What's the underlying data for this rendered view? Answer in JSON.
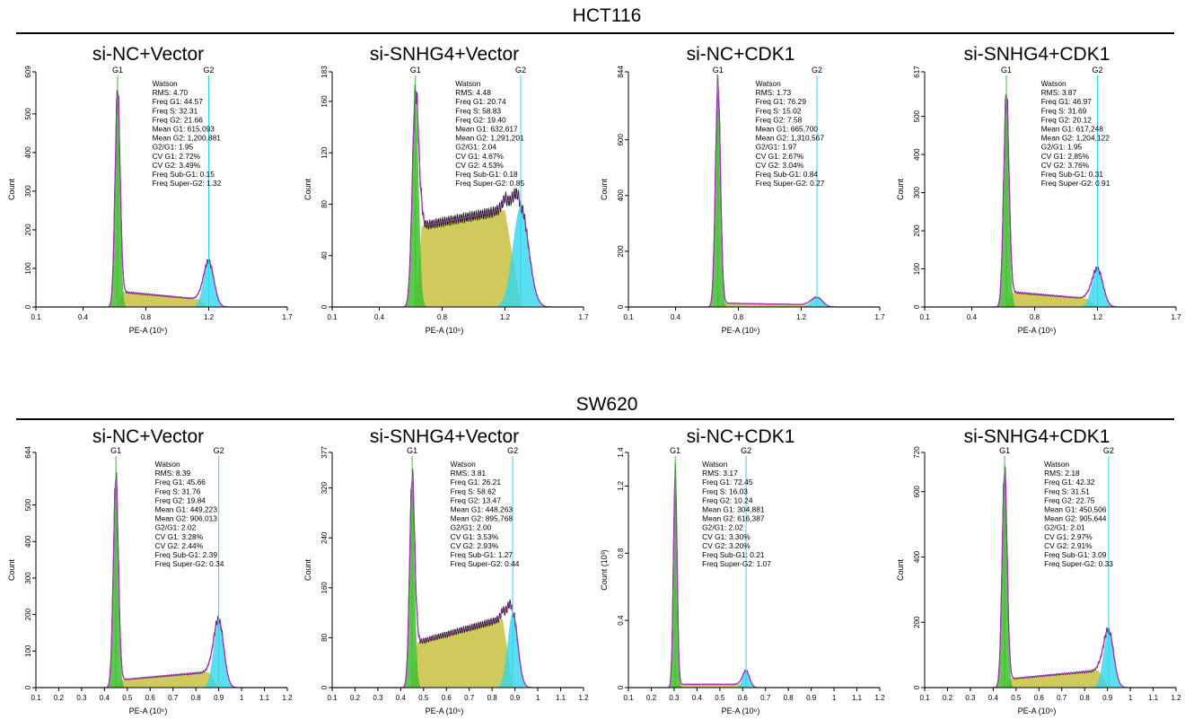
{
  "rows": [
    {
      "title": "HCT116"
    },
    {
      "title": "SW620"
    }
  ],
  "colors": {
    "g1_fill": "#3fbf2f",
    "s_fill": "#c8c040",
    "g2_fill": "#33d6ee",
    "fit_line": "#b02cc8",
    "data_line": "#222222",
    "peak_marker": "#28d8f0"
  },
  "chart_data": [
    {
      "type": "area",
      "row": "HCT116",
      "title": "si-NC+Vector",
      "xlabel": "PE-A (10⁶)",
      "ylabel": "Count",
      "xlim": [
        0.1,
        1.7
      ],
      "ylim": [
        0,
        609
      ],
      "xticks": [
        0.1,
        0.4,
        0.8,
        1.2,
        1.7
      ],
      "yticks": [
        0,
        100,
        200,
        300,
        400,
        500,
        609
      ],
      "g1_peak": {
        "label": "G1",
        "x": 0.62,
        "height": 560,
        "sigma": 0.016
      },
      "g2_peak": {
        "label": "G2",
        "x": 1.2,
        "height": 118,
        "sigma": 0.033
      },
      "s_level": [
        40,
        18
      ],
      "stats": [
        "Watson",
        "RMS: 4.70",
        "Freq G1: 44.57",
        "Freq S: 32.31",
        "Freq G2: 21.66",
        "Mean G1: 615,093",
        "Mean G2: 1,200,881",
        "G2/G1: 1.95",
        "CV G1: 2.72%",
        "CV G2: 3.49%",
        "Freq Sub-G1: 0.15",
        "Freq Super-G2: 1.32"
      ]
    },
    {
      "type": "area",
      "row": "HCT116",
      "title": "si-SNHG4+Vector",
      "xlabel": "PE-A (10⁶)",
      "ylabel": "Count",
      "xlim": [
        0.1,
        1.7
      ],
      "ylim": [
        0,
        183
      ],
      "xticks": [
        0.1,
        0.4,
        0.8,
        1.2,
        1.7
      ],
      "yticks": [
        0,
        40,
        80,
        120,
        160,
        183
      ],
      "g1_peak": {
        "label": "G1",
        "x": 0.63,
        "height": 165,
        "sigma": 0.02
      },
      "g2_peak": {
        "label": "G2",
        "x": 1.3,
        "height": 78,
        "sigma": 0.05
      },
      "s_level": [
        62,
        78
      ],
      "stats": [
        "Watson",
        "RMS: 4.48",
        "Freq G1: 20.74",
        "Freq S: 58.83",
        "Freq G2: 19.40",
        "Mean G1: 632,617",
        "Mean G2: 1,291,201",
        "G2/G1: 2.04",
        "CV G1: 4.67%",
        "CV G2: 4.53%",
        "Freq Sub-G1: 0.18",
        "Freq Super-G2: 0.85"
      ]
    },
    {
      "type": "area",
      "row": "HCT116",
      "title": "si-NC+CDK1",
      "xlabel": "PE-A (10⁶)",
      "ylabel": "Count",
      "xlim": [
        0.1,
        1.7
      ],
      "ylim": [
        0,
        844
      ],
      "xticks": [
        0.1,
        0.4,
        0.8,
        1.2,
        1.7
      ],
      "yticks": [
        0,
        200,
        400,
        600,
        844
      ],
      "g1_peak": {
        "label": "G1",
        "x": 0.67,
        "height": 800,
        "sigma": 0.016
      },
      "g2_peak": {
        "label": "G2",
        "x": 1.3,
        "height": 35,
        "sigma": 0.035
      },
      "s_level": [
        14,
        8
      ],
      "stats": [
        "Watson",
        "RMS: 1.73",
        "Freq G1: 76.29",
        "Freq S: 15.02",
        "Freq G2: 7.58",
        "Mean G1: 665,700",
        "Mean G2: 1,310,567",
        "G2/G1: 1.97",
        "CV G1: 2.67%",
        "CV G2: 3.04%",
        "Freq Sub-G1: 0.84",
        "Freq Super-G2: 0.27"
      ]
    },
    {
      "type": "area",
      "row": "HCT116",
      "title": "si-SNHG4+CDK1",
      "xlabel": "PE-A (10⁶)",
      "ylabel": "Count",
      "xlim": [
        0.1,
        1.7
      ],
      "ylim": [
        0,
        617
      ],
      "xticks": [
        0.1,
        0.4,
        0.8,
        1.2,
        1.7
      ],
      "yticks": [
        0,
        100,
        200,
        300,
        400,
        500,
        617
      ],
      "g1_peak": {
        "label": "G1",
        "x": 0.62,
        "height": 555,
        "sigma": 0.017
      },
      "g2_peak": {
        "label": "G2",
        "x": 1.2,
        "height": 100,
        "sigma": 0.035
      },
      "s_level": [
        40,
        20
      ],
      "stats": [
        "Watson",
        "RMS: 3.87",
        "Freq G1: 46.97",
        "Freq S: 31.69",
        "Freq G2: 20.12",
        "Mean G1: 617,248",
        "Mean G2: 1,204,122",
        "G2/G1: 1.95",
        "CV G1: 2.85%",
        "CV G2: 3.76%",
        "Freq Sub-G1: 0.31",
        "Freq Super-G2: 0.91"
      ]
    },
    {
      "type": "area",
      "row": "SW620",
      "title": "si-NC+Vector",
      "xlabel": "PE-A (10⁶)",
      "ylabel": "Count",
      "xlim": [
        0.1,
        1.2
      ],
      "ylim": [
        0,
        644
      ],
      "xticks": [
        0.1,
        0.2,
        0.3,
        0.4,
        0.5,
        0.6,
        0.7,
        0.8,
        0.9,
        1,
        1.1,
        1.2
      ],
      "yticks": [
        0,
        100,
        200,
        300,
        400,
        500,
        644
      ],
      "g1_peak": {
        "label": "G1",
        "x": 0.45,
        "height": 575,
        "sigma": 0.011
      },
      "g2_peak": {
        "label": "G2",
        "x": 0.9,
        "height": 185,
        "sigma": 0.022
      },
      "s_level": [
        20,
        45
      ],
      "stats": [
        "Watson",
        "RMS: 8.39",
        "Freq G1: 45.66",
        "Freq S: 31.76",
        "Freq G2: 19.84",
        "Mean G1: 449,223",
        "Mean G2: 906,013",
        "G2/G1: 2.02",
        "CV G1: 3.28%",
        "CV G2: 2.44%",
        "Freq Sub-G1: 2.39",
        "Freq Super-G2: 0.34"
      ]
    },
    {
      "type": "area",
      "row": "SW620",
      "title": "si-SNHG4+Vector",
      "xlabel": "PE-A (10⁶)",
      "ylabel": "Count",
      "xlim": [
        0.1,
        1.2
      ],
      "ylim": [
        0,
        377
      ],
      "xticks": [
        0.1,
        0.2,
        0.3,
        0.4,
        0.5,
        0.6,
        0.7,
        0.8,
        0.9,
        1,
        1.1,
        1.2
      ],
      "yticks": [
        0,
        80,
        160,
        240,
        320,
        377
      ],
      "g1_peak": {
        "label": "G1",
        "x": 0.45,
        "height": 335,
        "sigma": 0.011
      },
      "g2_peak": {
        "label": "G2",
        "x": 0.89,
        "height": 120,
        "sigma": 0.022
      },
      "s_level": [
        70,
        115
      ],
      "stats": [
        "Watson",
        "RMS: 3.81",
        "Freq G1: 26.21",
        "Freq S: 58.62",
        "Freq G2: 13.47",
        "Mean G1: 448,263",
        "Mean G2: 895,768",
        "G2/G1: 2.00",
        "CV G1: 3.53%",
        "CV G2: 2.93%",
        "Freq Sub-G1: 1.27",
        "Freq Super-G2: 0.44"
      ]
    },
    {
      "type": "area",
      "row": "SW620",
      "title": "si-NC+CDK1",
      "xlabel": "PE-A (10⁶)",
      "ylabel": "Count (10³)",
      "xlim": [
        0.1,
        1.2
      ],
      "ylim": [
        0,
        1.4
      ],
      "xticks": [
        0.1,
        0.2,
        0.3,
        0.4,
        0.5,
        0.6,
        0.7,
        0.8,
        0.9,
        1,
        1.1,
        1.2
      ],
      "yticks": [
        0,
        0.4,
        0.8,
        1.2,
        1.4
      ],
      "g1_peak": {
        "label": "G1",
        "x": 0.305,
        "height": 1.27,
        "sigma": 0.008
      },
      "g2_peak": {
        "label": "G2",
        "x": 0.615,
        "height": 0.1,
        "sigma": 0.015
      },
      "s_level": [
        0.02,
        0.02
      ],
      "stats": [
        "Watson",
        "RMS: 3.17",
        "Freq G1: 72.45",
        "Freq S: 16.03",
        "Freq G2: 10.24",
        "Mean G1: 304,881",
        "Mean G2: 616,387",
        "G2/G1: 2.02",
        "CV G1: 3.30%",
        "CV G2: 3.20%",
        "Freq Sub-G1: 0.21",
        "Freq Super-G2: 1.07"
      ]
    },
    {
      "type": "area",
      "row": "SW620",
      "title": "si-SNHG4+CDK1",
      "xlabel": "PE-A (10⁶)",
      "ylabel": "Count",
      "xlim": [
        0.1,
        1.2
      ],
      "ylim": [
        0,
        720
      ],
      "xticks": [
        0.1,
        0.2,
        0.3,
        0.4,
        0.5,
        0.6,
        0.7,
        0.8,
        0.9,
        1,
        1.1,
        1.2
      ],
      "yticks": [
        0,
        200,
        400,
        600,
        720
      ],
      "g1_peak": {
        "label": "G1",
        "x": 0.45,
        "height": 660,
        "sigma": 0.011
      },
      "g2_peak": {
        "label": "G2",
        "x": 0.905,
        "height": 175,
        "sigma": 0.022
      },
      "s_level": [
        25,
        55
      ],
      "stats": [
        "Watson",
        "RMS: 2.18",
        "Freq G1: 42.32",
        "Freq S: 31.51",
        "Freq G2: 22.75",
        "Mean G1: 450,506",
        "Mean G2: 905,644",
        "G2/G1: 2.01",
        "CV G1: 2.97%",
        "CV G2: 2.91%",
        "Freq Sub-G1: 3.09",
        "Freq Super-G2: 0.33"
      ]
    }
  ]
}
